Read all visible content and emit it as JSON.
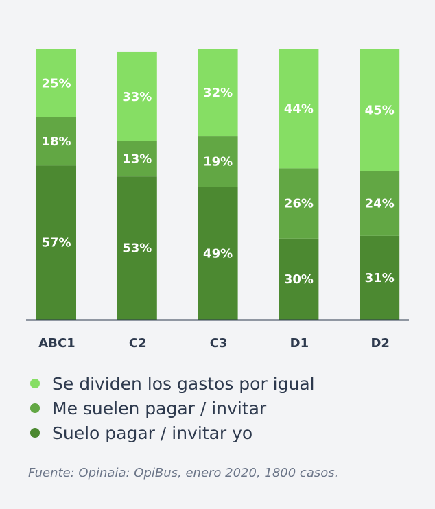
{
  "chart_data": {
    "type": "bar",
    "stacked": true,
    "categories": [
      "ABC1",
      "C2",
      "C3",
      "D1",
      "D2"
    ],
    "series": [
      {
        "name": "Suelo pagar / invitar yo",
        "values": [
          57,
          53,
          49,
          30,
          31
        ],
        "labels": [
          "57%",
          "53%",
          "49%",
          "30%",
          "31%"
        ],
        "color": "#4c8931"
      },
      {
        "name": "Me suelen pagar / invitar",
        "values": [
          18,
          13,
          19,
          26,
          24
        ],
        "labels": [
          "18%",
          "13%",
          "19%",
          "26%",
          "24%"
        ],
        "color": "#62a744"
      },
      {
        "name": "Se dividen los gastos por igual",
        "values": [
          25,
          33,
          32,
          44,
          45
        ],
        "labels": [
          "25%",
          "33%",
          "32%",
          "44%",
          "45%"
        ],
        "color": "#86de64"
      }
    ],
    "ylim": [
      0,
      100
    ],
    "grid": false,
    "legend_position": "bottom-left"
  },
  "legend": [
    {
      "label": "Se dividen los gastos por igual",
      "color": "#86de64"
    },
    {
      "label": "Me suelen pagar / invitar",
      "color": "#62a744"
    },
    {
      "label": "Suelo pagar / invitar yo",
      "color": "#4c8931"
    }
  ],
  "source": "Fuente: Opinaia: OpiBus, enero 2020, 1800 casos.",
  "colors": {
    "background": "#f3f4f6",
    "text": "#2e3a4e",
    "axis": "#2e3a4e",
    "source": "#6b7588"
  }
}
